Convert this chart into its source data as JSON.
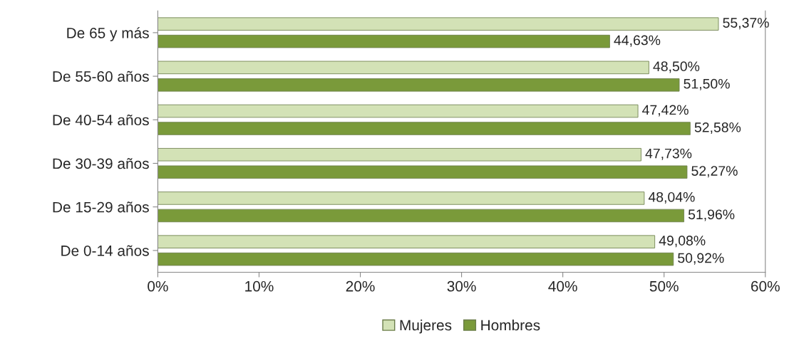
{
  "chart_data": {
    "type": "bar",
    "orientation": "horizontal",
    "categories": [
      "De 65 y más",
      "De 55-60 años",
      "De 40-54 años",
      "De 30-39 años",
      "De 15-29 años",
      "De 0-14 años"
    ],
    "series": [
      {
        "name": "Mujeres",
        "color": "#d3e2b6",
        "values": [
          55.37,
          48.5,
          47.42,
          47.73,
          48.04,
          49.08
        ],
        "value_labels": [
          "55,37%",
          "48,50%",
          "47,42%",
          "47,73%",
          "48,04%",
          "49,08%"
        ]
      },
      {
        "name": "Hombres",
        "color": "#7a9a3a",
        "values": [
          44.63,
          51.5,
          52.58,
          52.27,
          51.96,
          50.92
        ],
        "value_labels": [
          "44,63%",
          "51,50%",
          "52,58%",
          "52,27%",
          "51,96%",
          "50,92%"
        ]
      }
    ],
    "xlim": [
      0,
      60
    ],
    "xticks": [
      {
        "value": 0,
        "label": "0%"
      },
      {
        "value": 10,
        "label": "10%"
      },
      {
        "value": 20,
        "label": "20%"
      },
      {
        "value": 30,
        "label": "30%"
      },
      {
        "value": 40,
        "label": "40%"
      },
      {
        "value": 50,
        "label": "50%"
      },
      {
        "value": 60,
        "label": "60%"
      }
    ],
    "grid": false,
    "legend": "bottom"
  }
}
